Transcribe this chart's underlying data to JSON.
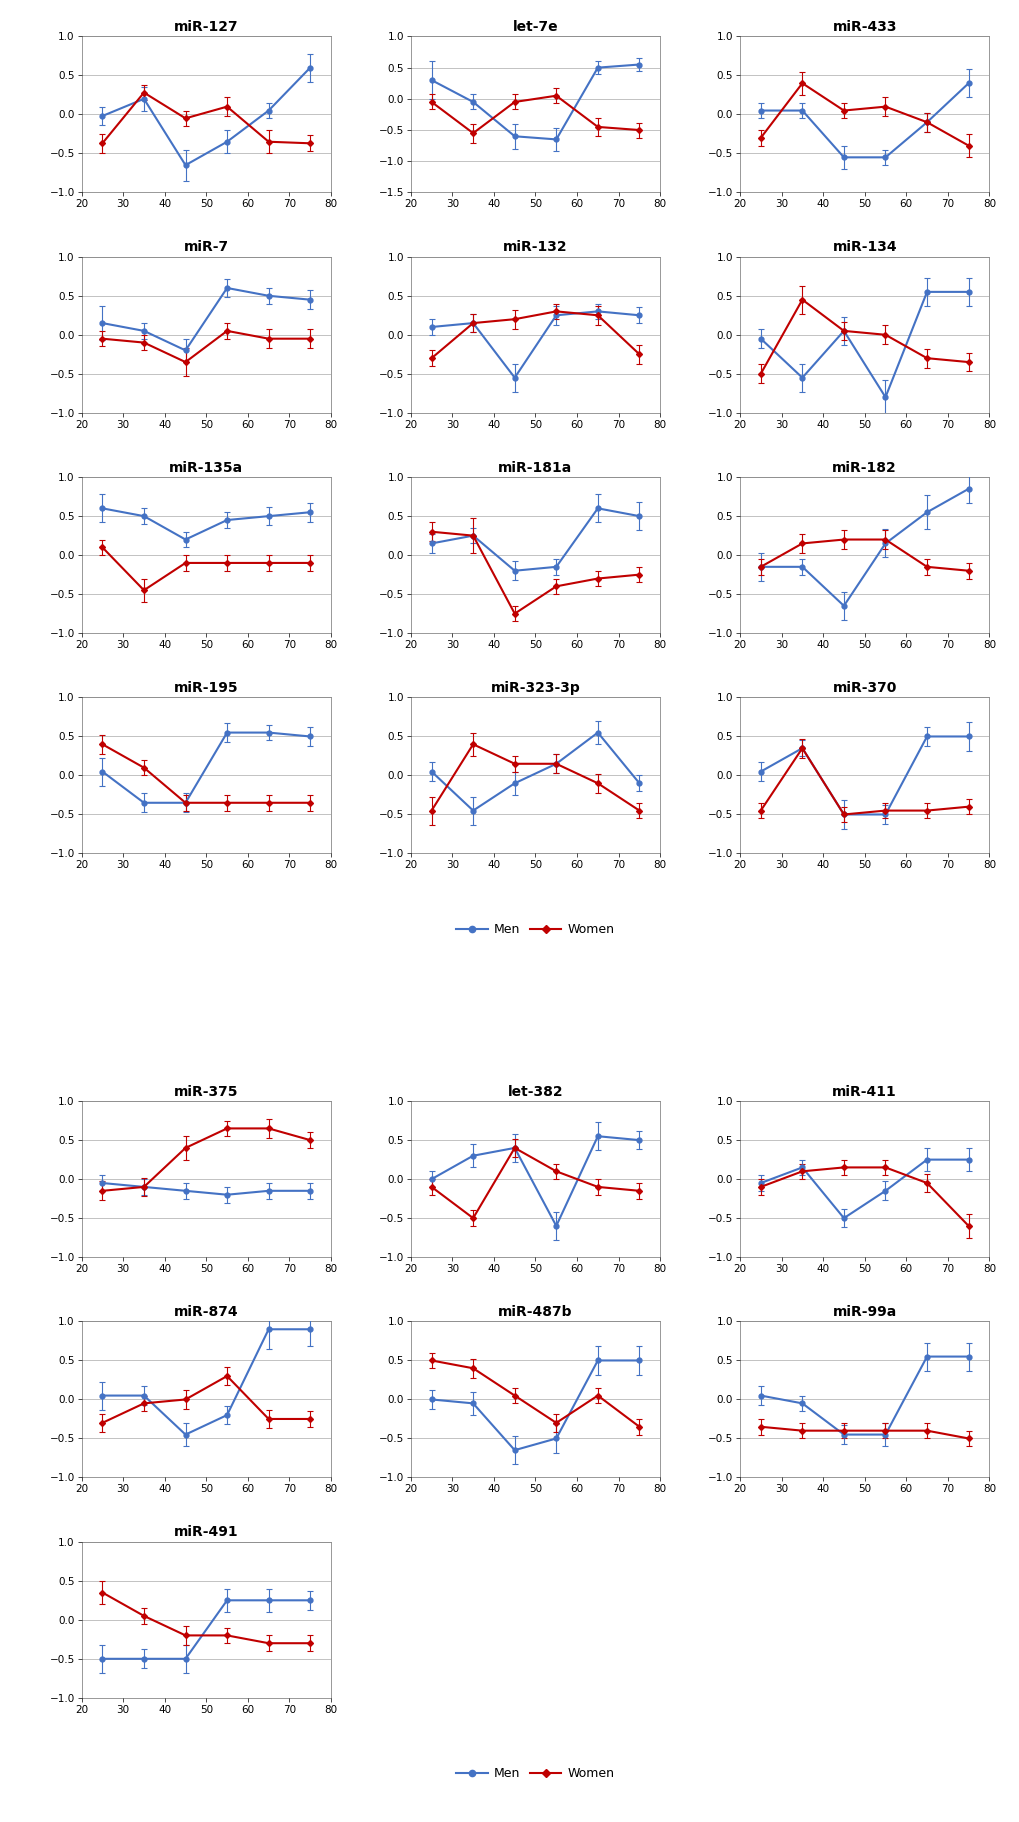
{
  "x_ages": [
    25,
    35,
    45,
    55,
    65,
    75
  ],
  "x_ticks": [
    20,
    30,
    40,
    50,
    60,
    70,
    80
  ],
  "plots_group1": [
    {
      "title": "miR-127",
      "men": [
        -0.02,
        0.2,
        -0.65,
        -0.35,
        0.05,
        0.6
      ],
      "women": [
        -0.37,
        0.28,
        -0.05,
        0.1,
        -0.35,
        -0.37
      ],
      "men_err": [
        0.12,
        0.15,
        0.2,
        0.15,
        0.1,
        0.18
      ],
      "women_err": [
        0.12,
        0.1,
        0.1,
        0.12,
        0.15,
        0.1
      ],
      "ylim": [
        -1.0,
        1.0
      ],
      "yticks": [
        -1,
        -0.5,
        0,
        0.5,
        1
      ]
    },
    {
      "title": "let-7e",
      "men": [
        0.3,
        -0.05,
        -0.6,
        -0.65,
        0.5,
        0.55
      ],
      "women": [
        -0.05,
        -0.55,
        -0.05,
        0.05,
        -0.45,
        -0.5
      ],
      "men_err": [
        0.3,
        0.12,
        0.2,
        0.18,
        0.1,
        0.1
      ],
      "women_err": [
        0.12,
        0.15,
        0.12,
        0.12,
        0.15,
        0.12
      ],
      "ylim": [
        -1.5,
        1.0
      ],
      "yticks": [
        -1.5,
        -1,
        -0.5,
        0,
        0.5,
        1
      ]
    },
    {
      "title": "miR-433",
      "men": [
        0.05,
        0.05,
        -0.55,
        -0.55,
        -0.1,
        0.4
      ],
      "women": [
        -0.3,
        0.4,
        0.05,
        0.1,
        -0.1,
        -0.4
      ],
      "men_err": [
        0.1,
        0.1,
        0.15,
        0.1,
        0.12,
        0.18
      ],
      "women_err": [
        0.1,
        0.15,
        0.1,
        0.12,
        0.12,
        0.15
      ],
      "ylim": [
        -1.0,
        1.0
      ],
      "yticks": [
        -1,
        -0.5,
        0,
        0.5,
        1
      ]
    },
    {
      "title": "miR-7",
      "men": [
        0.15,
        0.05,
        -0.2,
        0.6,
        0.5,
        0.45
      ],
      "women": [
        -0.05,
        -0.1,
        -0.35,
        0.05,
        -0.05,
        -0.05
      ],
      "men_err": [
        0.22,
        0.1,
        0.15,
        0.12,
        0.1,
        0.12
      ],
      "women_err": [
        0.1,
        0.1,
        0.18,
        0.1,
        0.12,
        0.12
      ],
      "ylim": [
        -1.0,
        1.0
      ],
      "yticks": [
        -1,
        -0.5,
        0,
        0.5,
        1
      ]
    },
    {
      "title": "miR-132",
      "men": [
        0.1,
        0.15,
        -0.55,
        0.25,
        0.3,
        0.25
      ],
      "women": [
        -0.3,
        0.15,
        0.2,
        0.3,
        0.25,
        -0.25
      ],
      "men_err": [
        0.1,
        0.12,
        0.18,
        0.12,
        0.1,
        0.1
      ],
      "women_err": [
        0.1,
        0.12,
        0.12,
        0.1,
        0.12,
        0.12
      ],
      "ylim": [
        -1.0,
        1.0
      ],
      "yticks": [
        -1,
        -0.5,
        0,
        0.5,
        1
      ]
    },
    {
      "title": "miR-134",
      "men": [
        -0.05,
        -0.55,
        0.05,
        -0.8,
        0.55,
        0.55
      ],
      "women": [
        -0.5,
        0.45,
        0.05,
        0.0,
        -0.3,
        -0.35
      ],
      "men_err": [
        0.12,
        0.18,
        0.18,
        0.22,
        0.18,
        0.18
      ],
      "women_err": [
        0.12,
        0.18,
        0.12,
        0.12,
        0.12,
        0.12
      ],
      "ylim": [
        -1.0,
        1.0
      ],
      "yticks": [
        -1,
        -0.5,
        0,
        0.5,
        1
      ]
    },
    {
      "title": "miR-135a",
      "men": [
        0.6,
        0.5,
        0.2,
        0.45,
        0.5,
        0.55
      ],
      "women": [
        0.1,
        -0.45,
        -0.1,
        -0.1,
        -0.1,
        -0.1
      ],
      "men_err": [
        0.18,
        0.1,
        0.1,
        0.1,
        0.12,
        0.12
      ],
      "women_err": [
        0.1,
        0.15,
        0.1,
        0.1,
        0.1,
        0.1
      ],
      "ylim": [
        -1.0,
        1.0
      ],
      "yticks": [
        -1,
        -0.5,
        0,
        0.5,
        1
      ]
    },
    {
      "title": "miR-181a",
      "men": [
        0.15,
        0.25,
        -0.2,
        -0.15,
        0.6,
        0.5
      ],
      "women": [
        0.3,
        0.25,
        -0.75,
        -0.4,
        -0.3,
        -0.25
      ],
      "men_err": [
        0.12,
        0.1,
        0.12,
        0.1,
        0.18,
        0.18
      ],
      "women_err": [
        0.12,
        0.22,
        0.1,
        0.1,
        0.1,
        0.1
      ],
      "ylim": [
        -1.0,
        1.0
      ],
      "yticks": [
        -1,
        -0.5,
        0,
        0.5,
        1
      ]
    },
    {
      "title": "miR-182",
      "men": [
        -0.15,
        -0.15,
        -0.65,
        0.15,
        0.55,
        0.85
      ],
      "women": [
        -0.15,
        0.15,
        0.2,
        0.2,
        -0.15,
        -0.2
      ],
      "men_err": [
        0.18,
        0.1,
        0.18,
        0.18,
        0.22,
        0.18
      ],
      "women_err": [
        0.1,
        0.12,
        0.12,
        0.12,
        0.1,
        0.1
      ],
      "ylim": [
        -1.0,
        1.0
      ],
      "yticks": [
        -1,
        -0.5,
        0,
        0.5,
        1
      ]
    },
    {
      "title": "miR-195",
      "men": [
        0.05,
        -0.35,
        -0.35,
        0.55,
        0.55,
        0.5
      ],
      "women": [
        0.4,
        0.1,
        -0.35,
        -0.35,
        -0.35,
        -0.35
      ],
      "men_err": [
        0.18,
        0.12,
        0.12,
        0.12,
        0.1,
        0.12
      ],
      "women_err": [
        0.12,
        0.1,
        0.1,
        0.1,
        0.1,
        0.1
      ],
      "ylim": [
        -1.0,
        1.0
      ],
      "yticks": [
        -1,
        -0.5,
        0,
        0.5,
        1
      ]
    },
    {
      "title": "miR-323-3p",
      "men": [
        0.05,
        -0.45,
        -0.1,
        0.15,
        0.55,
        -0.1
      ],
      "women": [
        -0.45,
        0.4,
        0.15,
        0.15,
        -0.1,
        -0.45
      ],
      "men_err": [
        0.12,
        0.18,
        0.15,
        0.12,
        0.15,
        0.1
      ],
      "women_err": [
        0.18,
        0.15,
        0.1,
        0.12,
        0.12,
        0.1
      ],
      "ylim": [
        -1.0,
        1.0
      ],
      "yticks": [
        -1,
        -0.5,
        0,
        0.5,
        1
      ]
    },
    {
      "title": "miR-370",
      "men": [
        0.05,
        0.35,
        -0.5,
        -0.5,
        0.5,
        0.5
      ],
      "women": [
        -0.45,
        0.35,
        -0.5,
        -0.45,
        -0.45,
        -0.4
      ],
      "men_err": [
        0.12,
        0.1,
        0.18,
        0.12,
        0.12,
        0.18
      ],
      "women_err": [
        0.1,
        0.12,
        0.1,
        0.1,
        0.1,
        0.1
      ],
      "ylim": [
        -1.0,
        1.0
      ],
      "yticks": [
        -1,
        -0.5,
        0,
        0.5,
        1
      ]
    }
  ],
  "plots_group2": [
    {
      "title": "miR-375",
      "men": [
        -0.05,
        -0.1,
        -0.15,
        -0.2,
        -0.15,
        -0.15
      ],
      "women": [
        -0.15,
        -0.1,
        0.4,
        0.65,
        0.65,
        0.5
      ],
      "men_err": [
        0.1,
        0.1,
        0.1,
        0.1,
        0.1,
        0.1
      ],
      "women_err": [
        0.12,
        0.12,
        0.15,
        0.1,
        0.12,
        0.1
      ],
      "ylim": [
        -1.0,
        1.0
      ],
      "yticks": [
        -1,
        -0.5,
        0,
        0.5,
        1
      ]
    },
    {
      "title": "let-382",
      "men": [
        0.0,
        0.3,
        0.4,
        -0.6,
        0.55,
        0.5
      ],
      "women": [
        -0.1,
        -0.5,
        0.4,
        0.1,
        -0.1,
        -0.15
      ],
      "men_err": [
        0.1,
        0.15,
        0.18,
        0.18,
        0.18,
        0.12
      ],
      "women_err": [
        0.1,
        0.1,
        0.12,
        0.1,
        0.1,
        0.1
      ],
      "ylim": [
        -1.0,
        1.0
      ],
      "yticks": [
        -1,
        -0.5,
        0,
        0.5,
        1
      ]
    },
    {
      "title": "miR-411",
      "men": [
        -0.05,
        0.15,
        -0.5,
        -0.15,
        0.25,
        0.25
      ],
      "women": [
        -0.1,
        0.1,
        0.15,
        0.15,
        -0.05,
        -0.6
      ],
      "men_err": [
        0.1,
        0.1,
        0.12,
        0.12,
        0.15,
        0.15
      ],
      "women_err": [
        0.1,
        0.1,
        0.1,
        0.1,
        0.12,
        0.15
      ],
      "ylim": [
        -1.0,
        1.0
      ],
      "yticks": [
        -1,
        -0.5,
        0,
        0.5,
        1
      ]
    },
    {
      "title": "miR-874",
      "men": [
        0.05,
        0.05,
        -0.45,
        -0.2,
        0.9,
        0.9
      ],
      "women": [
        -0.3,
        -0.05,
        0.0,
        0.3,
        -0.25,
        -0.25
      ],
      "men_err": [
        0.18,
        0.12,
        0.15,
        0.12,
        0.25,
        0.22
      ],
      "women_err": [
        0.12,
        0.1,
        0.12,
        0.12,
        0.12,
        0.1
      ],
      "ylim": [
        -1.0,
        1.0
      ],
      "yticks": [
        -1,
        -0.5,
        0,
        0.5,
        1
      ]
    },
    {
      "title": "miR-487b",
      "men": [
        0.0,
        -0.05,
        -0.65,
        -0.5,
        0.5,
        0.5
      ],
      "women": [
        0.5,
        0.4,
        0.05,
        -0.3,
        0.05,
        -0.35
      ],
      "men_err": [
        0.12,
        0.15,
        0.18,
        0.18,
        0.18,
        0.18
      ],
      "women_err": [
        0.1,
        0.12,
        0.1,
        0.12,
        0.1,
        0.1
      ],
      "ylim": [
        -1.0,
        1.0
      ],
      "yticks": [
        -1,
        -0.5,
        0,
        0.5,
        1
      ]
    },
    {
      "title": "miR-99a",
      "men": [
        0.05,
        -0.05,
        -0.45,
        -0.45,
        0.55,
        0.55
      ],
      "women": [
        -0.35,
        -0.4,
        -0.4,
        -0.4,
        -0.4,
        -0.5
      ],
      "men_err": [
        0.12,
        0.1,
        0.12,
        0.15,
        0.18,
        0.18
      ],
      "women_err": [
        0.1,
        0.1,
        0.1,
        0.1,
        0.1,
        0.1
      ],
      "ylim": [
        -1.0,
        1.0
      ],
      "yticks": [
        -1,
        -0.5,
        0,
        0.5,
        1
      ]
    },
    {
      "title": "miR-491",
      "men": [
        -0.5,
        -0.5,
        -0.5,
        0.25,
        0.25,
        0.25
      ],
      "women": [
        0.35,
        0.05,
        -0.2,
        -0.2,
        -0.3,
        -0.3
      ],
      "men_err": [
        0.18,
        0.12,
        0.18,
        0.15,
        0.15,
        0.12
      ],
      "women_err": [
        0.15,
        0.1,
        0.12,
        0.1,
        0.1,
        0.1
      ],
      "ylim": [
        -1.0,
        1.0
      ],
      "yticks": [
        -1,
        -0.5,
        0,
        0.5,
        1
      ]
    }
  ],
  "men_color": "#4472C4",
  "women_color": "#C00000",
  "marker_size": 3.5,
  "line_width": 1.5,
  "cap_size": 2.5,
  "font_size_title": 10,
  "font_size_tick": 7.5,
  "background_color": "#FFFFFF",
  "grid_color": "#AAAAAA"
}
